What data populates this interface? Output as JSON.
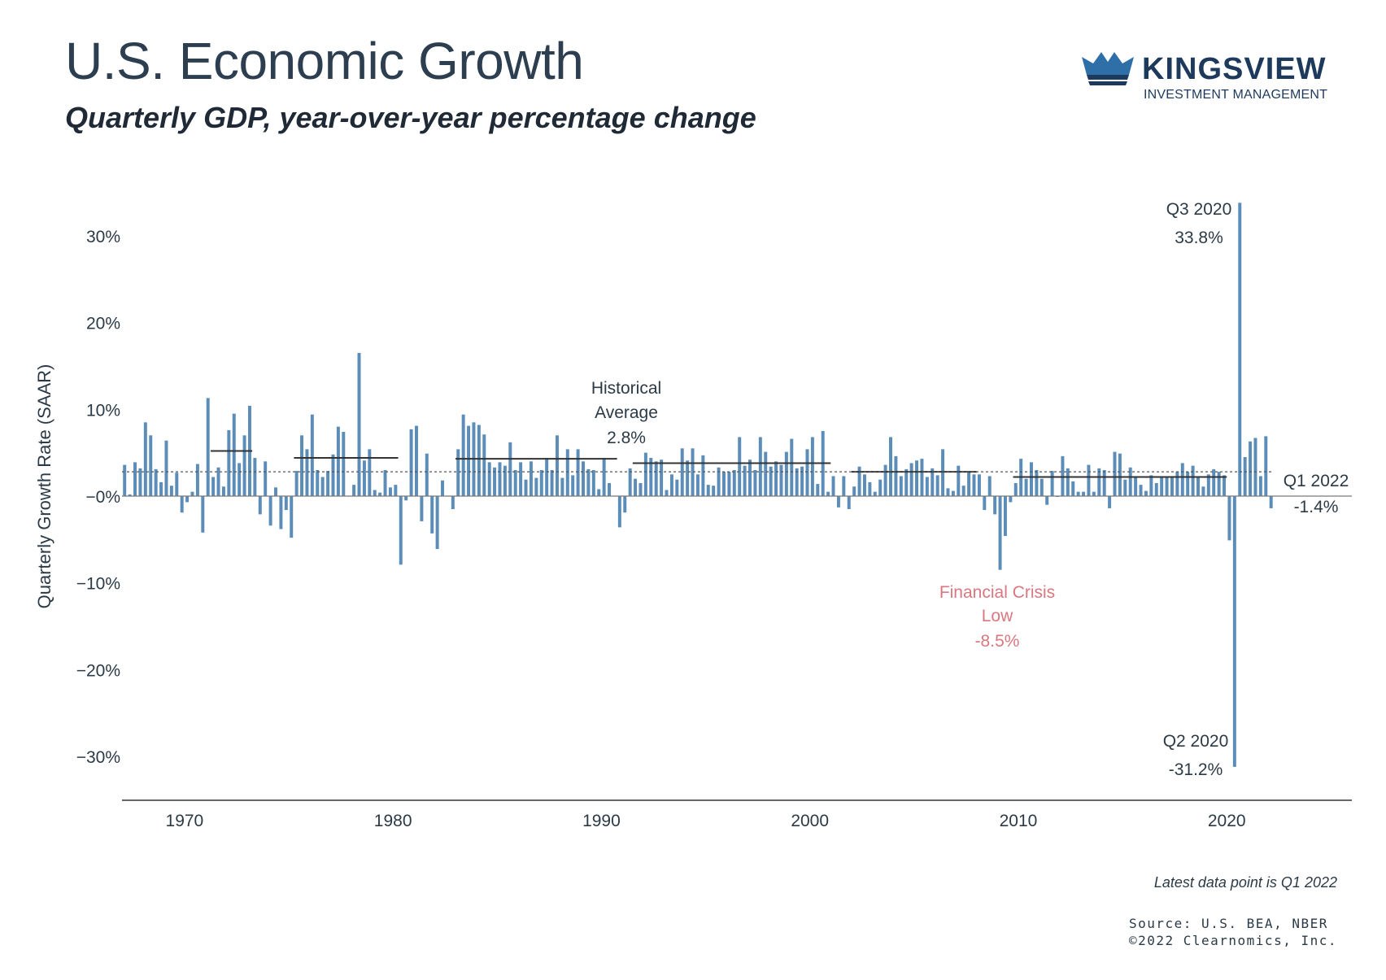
{
  "header": {
    "title": "U.S. Economic Growth",
    "subtitle": "Quarterly GDP, year-over-year percentage change"
  },
  "logo": {
    "name": "KINGSVIEW",
    "tagline": "INVESTMENT MANAGEMENT",
    "icon": "crown-icon",
    "color": "#1d3a5c",
    "accent": "#2f6fa8"
  },
  "footer": {
    "note": "Latest data point is Q1 2022",
    "source_line1": "Source: U.S. BEA, NBER",
    "source_line2": "©2022 Clearnomics, Inc."
  },
  "chart_data": {
    "type": "bar",
    "title": "U.S. Economic Growth",
    "subtitle": "Quarterly GDP, year-over-year percentage change",
    "ylabel": "Quarterly Growth Rate (SAAR)",
    "xlabel": "",
    "ylim": [
      -35,
      35
    ],
    "xlim": [
      1967.0,
      2026.0
    ],
    "yticks": [
      {
        "value": 30,
        "label": "30%"
      },
      {
        "value": 20,
        "label": "20%"
      },
      {
        "value": 10,
        "label": "10%"
      },
      {
        "value": 0,
        "label": "−0%"
      },
      {
        "value": -10,
        "label": "−10%"
      },
      {
        "value": -20,
        "label": "−20%"
      },
      {
        "value": -30,
        "label": "−30%"
      }
    ],
    "xticks": [
      "1970",
      "1980",
      "1990",
      "2000",
      "2010",
      "2020"
    ],
    "bar_color": "#5b8db8",
    "historical_average": 2.8,
    "grid": false,
    "legend": "none",
    "start": "1967-Q1",
    "values": [
      3.6,
      0.2,
      3.9,
      3.2,
      8.5,
      7.0,
      3.1,
      1.6,
      6.4,
      1.2,
      2.7,
      -1.9,
      -0.7,
      0.5,
      3.7,
      -4.2,
      11.3,
      2.2,
      3.3,
      1.1,
      7.6,
      9.5,
      3.8,
      7.0,
      10.4,
      4.4,
      -2.1,
      4.0,
      -3.4,
      1.0,
      -3.8,
      -1.6,
      -4.8,
      2.9,
      7.0,
      5.4,
      9.4,
      3.0,
      2.2,
      2.9,
      4.8,
      8.0,
      7.4,
      0.0,
      1.3,
      16.5,
      4.1,
      5.4,
      0.7,
      0.4,
      3.0,
      1.0,
      1.3,
      -7.9,
      -0.5,
      7.7,
      8.1,
      -2.9,
      4.9,
      -4.3,
      -6.1,
      1.8,
      0.0,
      -1.5,
      5.4,
      9.4,
      8.1,
      8.5,
      8.2,
      7.1,
      3.9,
      3.3,
      3.9,
      3.5,
      6.2,
      3.0,
      3.9,
      1.9,
      4.0,
      2.1,
      3.0,
      4.4,
      3.0,
      7.0,
      2.1,
      5.4,
      2.4,
      5.4,
      4.0,
      3.1,
      3.0,
      0.8,
      4.4,
      1.5,
      0.0,
      -3.6,
      -1.9,
      3.2,
      2.0,
      1.5,
      5.0,
      4.4,
      4.0,
      4.2,
      0.7,
      2.5,
      1.9,
      5.5,
      4.1,
      5.5,
      2.5,
      4.7,
      1.3,
      1.2,
      3.3,
      2.8,
      2.8,
      3.0,
      6.8,
      3.5,
      4.2,
      3.0,
      6.8,
      5.1,
      3.4,
      4.0,
      3.6,
      5.1,
      6.6,
      3.2,
      3.4,
      5.4,
      6.8,
      1.4,
      7.5,
      0.5,
      2.3,
      -1.3,
      2.3,
      -1.5,
      1.1,
      3.4,
      2.5,
      1.6,
      0.5,
      1.9,
      3.6,
      6.8,
      4.6,
      2.3,
      3.1,
      3.8,
      4.1,
      4.3,
      2.2,
      3.2,
      2.4,
      5.4,
      0.9,
      0.6,
      3.5,
      1.2,
      2.8,
      2.5,
      2.5,
      -1.6,
      2.3,
      -2.1,
      -8.5,
      -4.6,
      -0.7,
      1.5,
      4.3,
      2.0,
      3.9,
      3.0,
      2.0,
      -1.0,
      2.9,
      -0.1,
      4.6,
      3.2,
      1.7,
      0.5,
      0.5,
      3.6,
      0.5,
      3.2,
      3.0,
      -1.4,
      5.1,
      4.9,
      1.9,
      3.3,
      2.3,
      1.3,
      0.6,
      2.4,
      1.5,
      2.3,
      2.2,
      2.3,
      2.8,
      3.8,
      2.8,
      3.5,
      2.2,
      1.1,
      2.5,
      3.1,
      2.8,
      2.4,
      -5.1,
      -31.2,
      33.8,
      4.5,
      6.3,
      6.7,
      2.3,
      6.9,
      -1.4
    ],
    "period_averages": [
      {
        "start": 1971.25,
        "end": 1973.25,
        "value": 5.2
      },
      {
        "start": 1975.25,
        "end": 1980.25,
        "value": 4.4
      },
      {
        "start": 1983.0,
        "end": 1990.75,
        "value": 4.3
      },
      {
        "start": 1991.5,
        "end": 2001.0,
        "value": 3.8
      },
      {
        "start": 2002.0,
        "end": 2008.0,
        "value": 2.8
      },
      {
        "start": 2009.75,
        "end": 2020.0,
        "value": 2.2
      }
    ],
    "annotations": [
      {
        "label_line1": "Historical",
        "label_line2": "Average",
        "value_label": "2.8%",
        "color": "#2b3a47"
      },
      {
        "label_line1": "Q3 2020",
        "value_label": "33.8%",
        "color": "#2b3a47"
      },
      {
        "label_line1": "Q2 2020",
        "value_label": "-31.2%",
        "color": "#2b3a47"
      },
      {
        "label_line1": "Financial Crisis",
        "label_line2": "Low",
        "value_label": "-8.5%",
        "color": "#d97780"
      },
      {
        "label_line1": "Q1 2022",
        "value_label": "-1.4%",
        "color": "#2b3a47"
      }
    ]
  }
}
